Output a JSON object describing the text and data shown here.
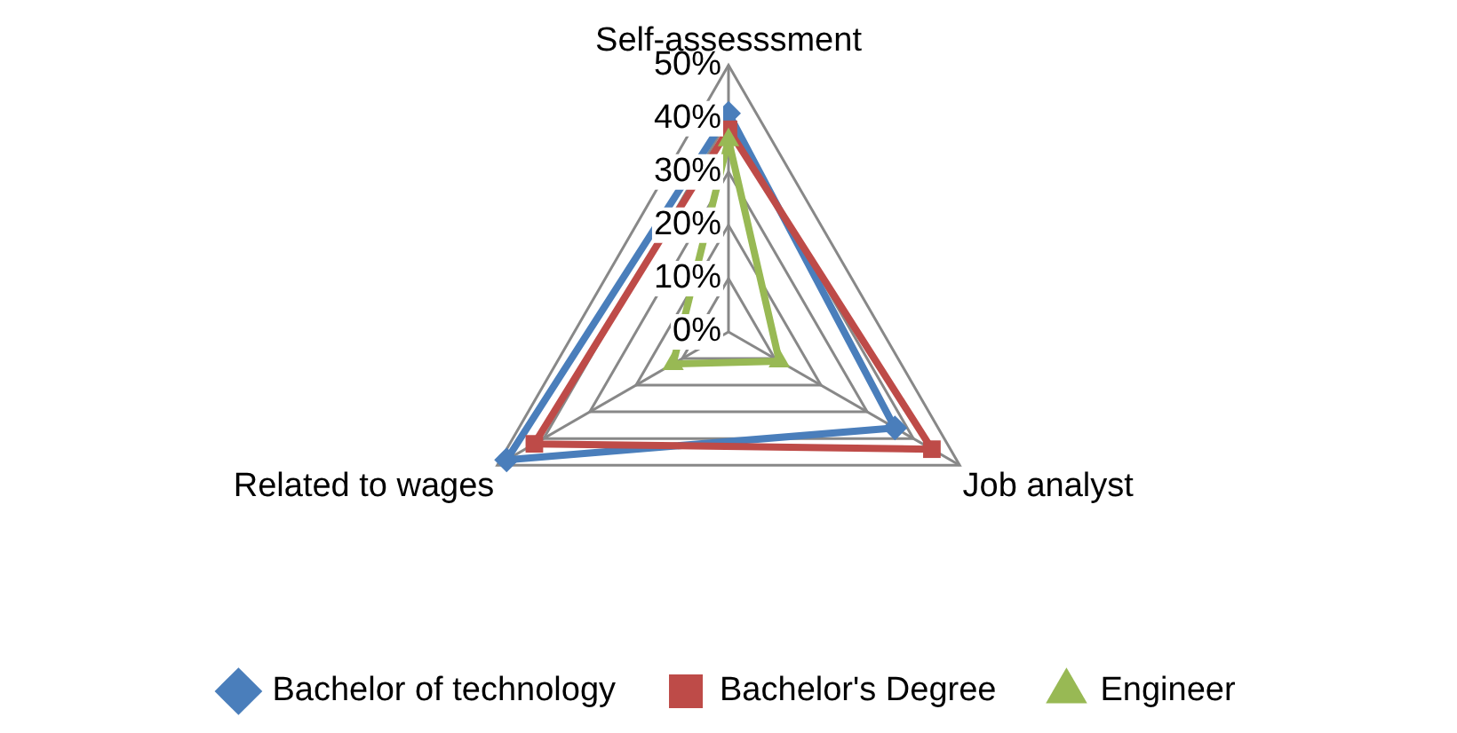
{
  "chart_data": {
    "type": "radar",
    "categories": [
      "Self-assesssment",
      "Job analyst",
      "Related to wages"
    ],
    "series": [
      {
        "name": "Bachelor of technology",
        "color": "#4a7ebb",
        "marker": "diamond",
        "values": [
          41,
          36,
          48
        ]
      },
      {
        "name": "Bachelor's Degree",
        "color": "#be4b48",
        "marker": "square",
        "values": [
          38,
          44,
          42
        ]
      },
      {
        "name": "Engineer",
        "color": "#98b954",
        "marker": "triangle",
        "values": [
          36,
          11,
          12
        ]
      }
    ],
    "ylim": [
      0,
      50
    ],
    "yticks": [
      {
        "value": 0,
        "label": "0%"
      },
      {
        "value": 10,
        "label": "10%"
      },
      {
        "value": 20,
        "label": "20%"
      },
      {
        "value": 30,
        "label": "30%"
      },
      {
        "value": 40,
        "label": "40%"
      },
      {
        "value": 50,
        "label": "50%"
      }
    ],
    "grid": true,
    "legend": "bottom"
  }
}
